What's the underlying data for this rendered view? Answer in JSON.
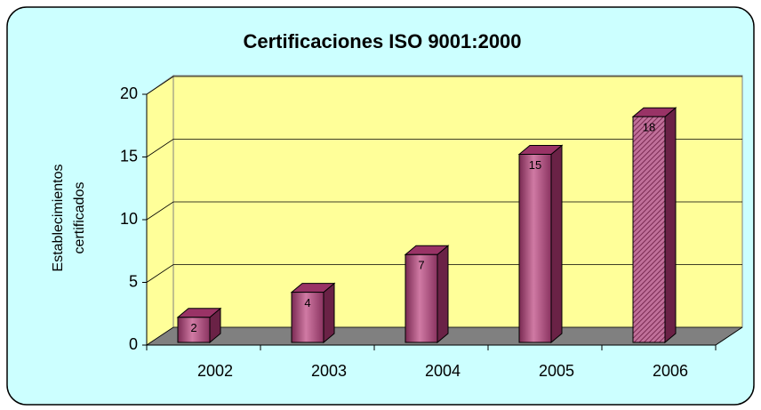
{
  "chart_data": {
    "type": "bar3d",
    "title": "Certificaciones ISO 9001:2000",
    "ylabel": [
      "Establecimientos",
      "certificados"
    ],
    "categories": [
      "2002",
      "2003",
      "2004",
      "2005",
      "2006"
    ],
    "values": [
      2,
      4,
      7,
      15,
      18
    ],
    "color": "#993366",
    "ylim": [
      0,
      20
    ],
    "yticks": [
      0,
      5,
      10,
      15,
      20
    ],
    "grid": true
  }
}
